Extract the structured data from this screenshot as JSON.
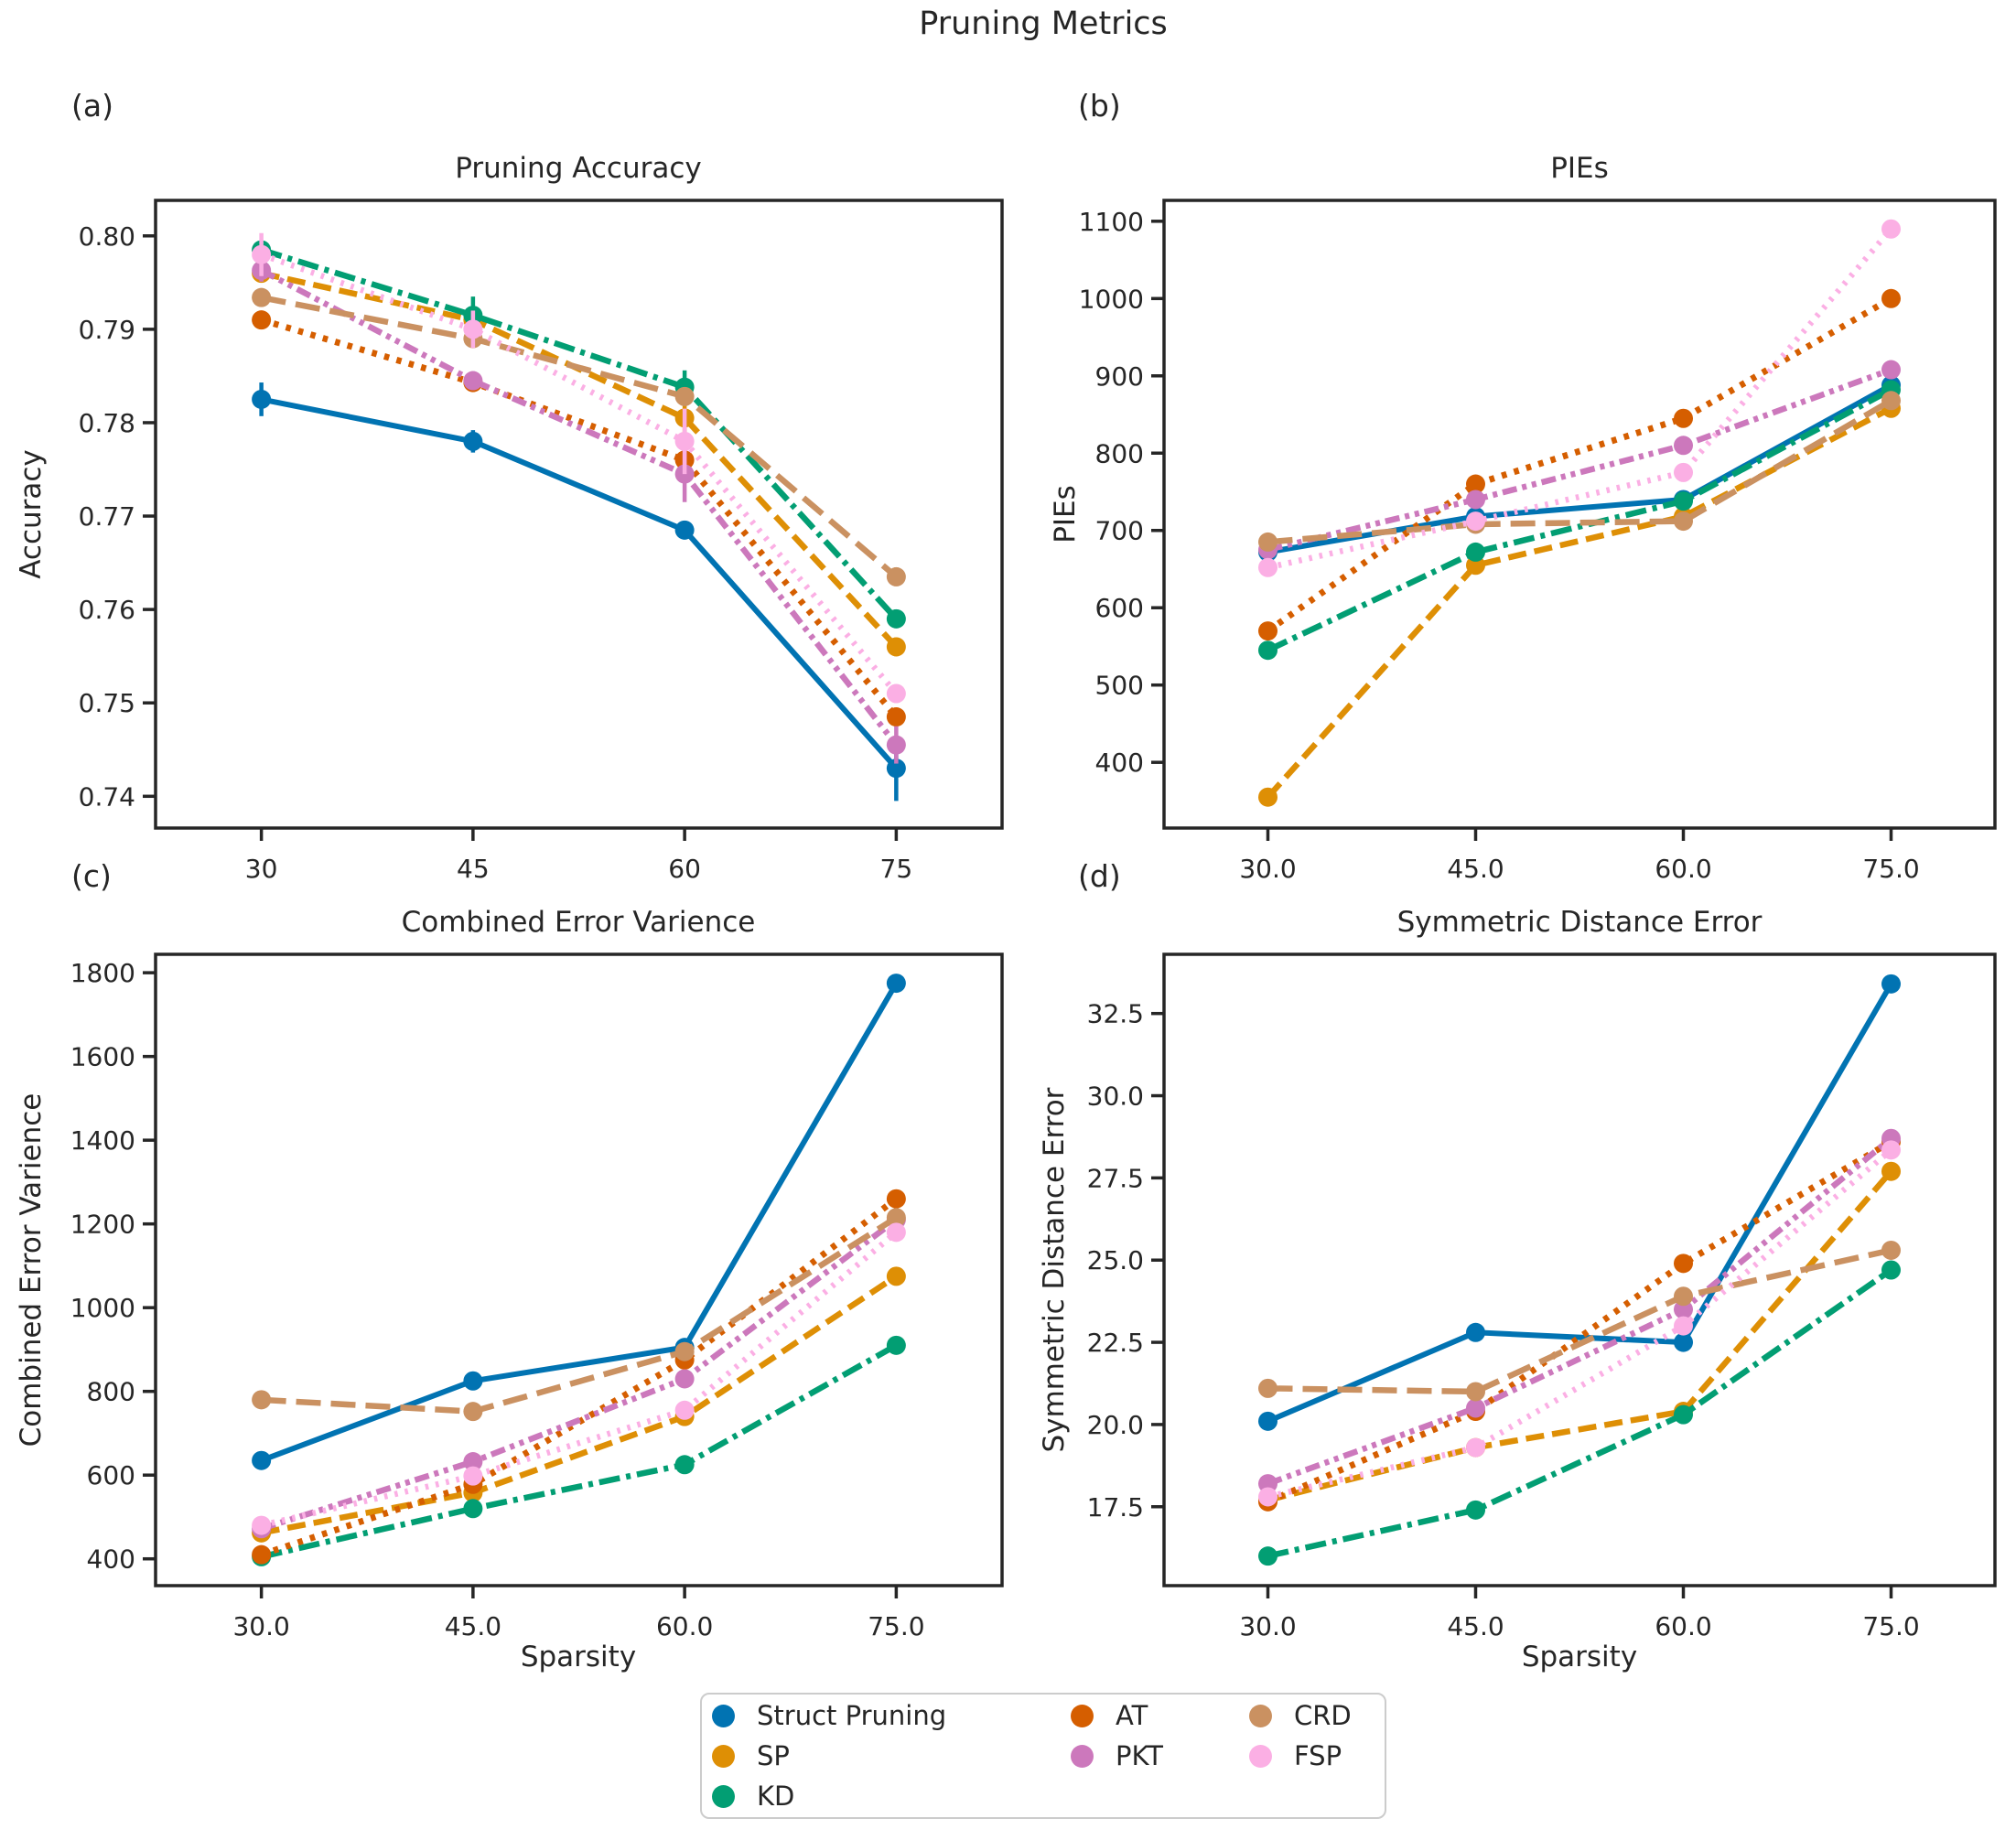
{
  "figure": {
    "title": "Pruning Metrics",
    "background": "#ffffff",
    "axis_color": "#262626",
    "text_color": "#262626"
  },
  "series_meta": [
    {
      "name": "Struct Pruning",
      "color": "#0173B2",
      "dash": "solid"
    },
    {
      "name": "SP",
      "color": "#DE8F05",
      "dash": "dashed"
    },
    {
      "name": "KD",
      "color": "#029E73",
      "dash": "dashdot"
    },
    {
      "name": "AT",
      "color": "#D55E00",
      "dash": "dotted"
    },
    {
      "name": "PKT",
      "color": "#CC78BC",
      "dash": "dashdotdot"
    },
    {
      "name": "CRD",
      "color": "#CA9161",
      "dash": "longdash"
    },
    {
      "name": "FSP",
      "color": "#FBAFE4",
      "dash": "finedot"
    }
  ],
  "legend": {
    "position": "bottom-center",
    "columns": [
      [
        "Struct Pruning",
        "SP",
        "KD"
      ],
      [
        "AT",
        "PKT"
      ],
      [
        "CRD",
        "FSP"
      ]
    ]
  },
  "chart_data": [
    {
      "type": "line",
      "panel_label": "(a)",
      "title": "Pruning Accuracy",
      "ylabel": "Accuracy",
      "xlabel": "",
      "x": [
        30,
        45,
        60,
        75
      ],
      "xtick_labels": [
        "30",
        "45",
        "60",
        "75"
      ],
      "yticks": [
        0.74,
        0.75,
        0.76,
        0.77,
        0.78,
        0.79,
        0.8
      ],
      "ytick_labels": [
        "0.74",
        "0.75",
        "0.76",
        "0.77",
        "0.78",
        "0.79",
        "0.80"
      ],
      "xlim": [
        22.5,
        82.5
      ],
      "ylim": [
        0.7366,
        0.8038
      ],
      "grid": false,
      "series": [
        {
          "name": "Struct Pruning",
          "values": [
            0.7825,
            0.778,
            0.7685,
            0.743
          ],
          "yerr": [
            0.0018,
            0.0012,
            0.001,
            0.0035
          ]
        },
        {
          "name": "SP",
          "values": [
            0.796,
            0.791,
            0.7805,
            0.756
          ],
          "yerr": [
            0.001,
            0.0012,
            0.0025,
            0.001
          ]
        },
        {
          "name": "KD",
          "values": [
            0.7985,
            0.7915,
            0.7838,
            0.759
          ],
          "yerr": [
            0.001,
            0.002,
            0.0018,
            0.001
          ]
        },
        {
          "name": "AT",
          "values": [
            0.791,
            0.7843,
            0.776,
            0.7485
          ],
          "yerr": [
            0.001,
            0.001,
            0.001,
            0.001
          ]
        },
        {
          "name": "PKT",
          "values": [
            0.7963,
            0.7845,
            0.7745,
            0.7455
          ],
          "yerr": [
            0.0012,
            0.001,
            0.003,
            0.002
          ]
        },
        {
          "name": "CRD",
          "values": [
            0.7934,
            0.789,
            0.7828,
            0.7635
          ],
          "yerr": [
            0.001,
            0.001,
            0.001,
            0.001
          ]
        },
        {
          "name": "FSP",
          "values": [
            0.798,
            0.79,
            0.778,
            0.751
          ],
          "yerr": [
            0.0023,
            0.002,
            0.0035,
            0.001
          ]
        }
      ]
    },
    {
      "type": "line",
      "panel_label": "(b)",
      "title": "PIEs",
      "ylabel": "PIEs",
      "xlabel": "",
      "x": [
        30,
        45,
        60,
        75
      ],
      "xtick_labels": [
        "30.0",
        "45.0",
        "60.0",
        "75.0"
      ],
      "yticks": [
        400,
        500,
        600,
        700,
        800,
        900,
        1000,
        1100
      ],
      "ytick_labels": [
        "400",
        "500",
        "600",
        "700",
        "800",
        "900",
        "1000",
        "1100"
      ],
      "xlim": [
        22.5,
        82.5
      ],
      "ylim": [
        315,
        1127
      ],
      "grid": false,
      "series": [
        {
          "name": "Struct Pruning",
          "values": [
            672,
            718,
            740,
            888
          ]
        },
        {
          "name": "SP",
          "values": [
            355,
            655,
            718,
            858
          ]
        },
        {
          "name": "KD",
          "values": [
            545,
            672,
            738,
            882
          ]
        },
        {
          "name": "AT",
          "values": [
            570,
            760,
            845,
            1000
          ]
        },
        {
          "name": "PKT",
          "values": [
            675,
            740,
            810,
            908
          ]
        },
        {
          "name": "CRD",
          "values": [
            685,
            708,
            712,
            868
          ]
        },
        {
          "name": "FSP",
          "values": [
            652,
            712,
            775,
            1090
          ]
        }
      ]
    },
    {
      "type": "line",
      "panel_label": "(c)",
      "title": "Combined Error Varience",
      "ylabel": "Combined Error Varience",
      "xlabel": "Sparsity",
      "x": [
        30,
        45,
        60,
        75
      ],
      "xtick_labels": [
        "30.0",
        "45.0",
        "60.0",
        "75.0"
      ],
      "yticks": [
        400,
        600,
        800,
        1000,
        1200,
        1400,
        1600,
        1800
      ],
      "ytick_labels": [
        "400",
        "600",
        "800",
        "1000",
        "1200",
        "1400",
        "1600",
        "1800"
      ],
      "xlim": [
        22.5,
        82.5
      ],
      "ylim": [
        336,
        1844
      ],
      "grid": false,
      "series": [
        {
          "name": "Struct Pruning",
          "values": [
            635,
            825,
            905,
            1775
          ]
        },
        {
          "name": "SP",
          "values": [
            462,
            558,
            740,
            1075
          ]
        },
        {
          "name": "KD",
          "values": [
            405,
            520,
            625,
            910
          ]
        },
        {
          "name": "AT",
          "values": [
            410,
            578,
            875,
            1260
          ]
        },
        {
          "name": "PKT",
          "values": [
            472,
            632,
            830,
            1210
          ]
        },
        {
          "name": "CRD",
          "values": [
            780,
            752,
            895,
            1215
          ]
        },
        {
          "name": "FSP",
          "values": [
            480,
            598,
            755,
            1180
          ]
        }
      ]
    },
    {
      "type": "line",
      "panel_label": "(d)",
      "title": "Symmetric Distance Error",
      "ylabel": "Symmetric Distance Error",
      "xlabel": "Sparsity",
      "x": [
        30,
        45,
        60,
        75
      ],
      "xtick_labels": [
        "30.0",
        "45.0",
        "60.0",
        "75.0"
      ],
      "yticks": [
        17.5,
        20.0,
        22.5,
        25.0,
        27.5,
        30.0,
        32.5
      ],
      "ytick_labels": [
        "17.5",
        "20.0",
        "22.5",
        "25.0",
        "27.5",
        "30.0",
        "32.5"
      ],
      "xlim": [
        22.5,
        82.5
      ],
      "ylim": [
        15.1,
        34.3
      ],
      "grid": false,
      "series": [
        {
          "name": "Struct Pruning",
          "values": [
            20.1,
            22.8,
            22.5,
            33.4
          ]
        },
        {
          "name": "SP",
          "values": [
            17.7,
            19.3,
            20.4,
            27.7
          ]
        },
        {
          "name": "KD",
          "values": [
            16.0,
            17.4,
            20.3,
            24.7
          ]
        },
        {
          "name": "AT",
          "values": [
            17.65,
            20.4,
            24.9,
            28.6
          ]
        },
        {
          "name": "PKT",
          "values": [
            18.2,
            20.5,
            23.5,
            28.7
          ]
        },
        {
          "name": "CRD",
          "values": [
            21.1,
            21.0,
            23.9,
            25.3
          ]
        },
        {
          "name": "FSP",
          "values": [
            17.8,
            19.3,
            23.0,
            28.35
          ]
        }
      ]
    }
  ]
}
